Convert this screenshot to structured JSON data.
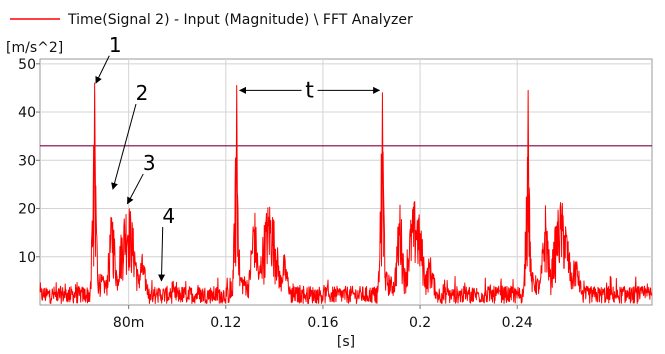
{
  "legend": {
    "text": "Time(Signal 2) - Input (Magnitude) \\ FFT Analyzer",
    "color": "#ff0000"
  },
  "chart_data": {
    "type": "line",
    "y_unit": "[m/s^2]",
    "xlabel": "[s]",
    "x_ticks": [
      {
        "value": 0.08,
        "label": "80m"
      },
      {
        "value": 0.12,
        "label": "0.12"
      },
      {
        "value": 0.16,
        "label": "0.16"
      },
      {
        "value": 0.2,
        "label": "0.2"
      },
      {
        "value": 0.24,
        "label": "0.24"
      }
    ],
    "y_ticks": [
      {
        "value": 10,
        "label": "10"
      },
      {
        "value": 20,
        "label": "20"
      },
      {
        "value": 30,
        "label": "30"
      },
      {
        "value": 40,
        "label": "40"
      },
      {
        "value": 50,
        "label": "50"
      }
    ],
    "xlim": [
      0.0435,
      0.2955
    ],
    "ylim": [
      0,
      51
    ],
    "grid": true,
    "threshold": {
      "value": 33,
      "color": "#800040"
    },
    "series": [
      {
        "color": "#ff0000",
        "bursts": [
          {
            "t": 0.066,
            "peak": 46,
            "second": 24,
            "third": 22
          },
          {
            "t": 0.1245,
            "peak": 45.5,
            "second": 24,
            "third": 22
          },
          {
            "t": 0.1845,
            "peak": 44,
            "second": 25,
            "third": 22
          },
          {
            "t": 0.2445,
            "peak": 44.5,
            "second": 24,
            "third": 22
          }
        ],
        "noise_floor": 2
      }
    ],
    "annotations": [
      {
        "label": "1",
        "text_x": 0.0745,
        "text_y": 52.5,
        "to_x": 0.0665,
        "to_y": 46
      },
      {
        "label": "2",
        "text_x": 0.0855,
        "text_y": 42.5,
        "to_x": 0.0735,
        "to_y": 24
      },
      {
        "label": "3",
        "text_x": 0.0885,
        "text_y": 28,
        "to_x": 0.0795,
        "to_y": 21
      },
      {
        "label": "4",
        "text_x": 0.0965,
        "text_y": 17,
        "to_x": 0.0935,
        "to_y": 5
      }
    ],
    "period_marker": {
      "label": "t",
      "x1": 0.1245,
      "x2": 0.1845,
      "y": 44.5
    }
  }
}
